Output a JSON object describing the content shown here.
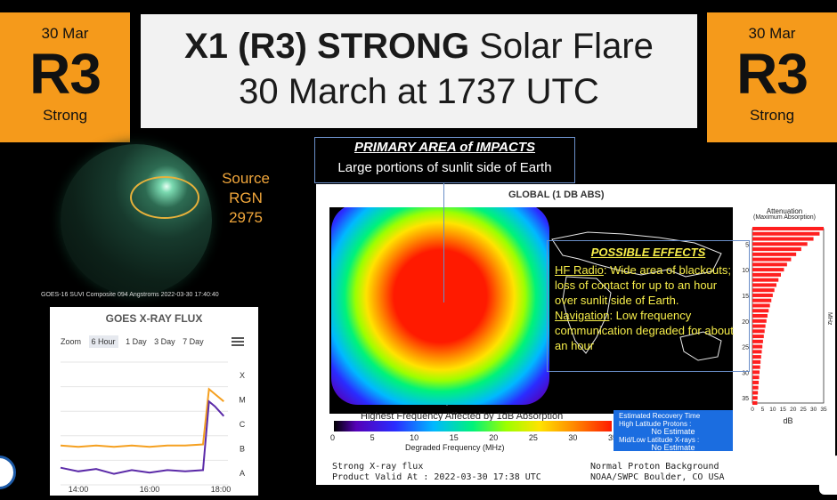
{
  "badges": {
    "left": {
      "date": "30 Mar",
      "level": "R3",
      "label": "Strong"
    },
    "right": {
      "date": "30 Mar",
      "level": "R3",
      "label": "Strong"
    }
  },
  "title": {
    "bold": "X1 (R3) STRONG",
    "rest": " Solar Flare",
    "line2": "30 March at 1737 UTC"
  },
  "source": {
    "line1": "Source",
    "line2": "RGN 2975"
  },
  "suvi_caption": "GOES-16 SUVI Composite 094 Angstroms 2022-03-30 17:40:40",
  "impact": {
    "title": "PRIMARY AREA of IMPACTS",
    "text": "Large portions of sunlit side of Earth"
  },
  "effects": {
    "title": "POSSIBLE EFFECTS",
    "hf_label": "HF Radio",
    "hf_text": ": Wide area of blackouts; loss of contact for up to an hour over sunlit side of Earth.",
    "nav_label": "Navigation",
    "nav_text": ": Low frequency communication degraded for about an hour"
  },
  "drap": {
    "title": "GLOBAL (1 DB ABS)",
    "legend_title": "Highest Frequency Affected by 1dB Absorption",
    "legend_ticks": [
      "0",
      "5",
      "10",
      "15",
      "20",
      "25",
      "30",
      "35"
    ],
    "legend_xlabel": "Degraded Frequency (MHz)",
    "attenuation_title": "Attenuation",
    "attenuation_subtitle": "(Maximum Absorption)",
    "attenuation_ylabel": "MHz",
    "attenuation_xlabel": "dB",
    "recovery": {
      "heading": "Estimated Recovery Time",
      "hlp_label": "High Latitude Protons :",
      "hlp_value": "No Estimate",
      "mll_label": "Mid/Low Latitude X-rays :",
      "mll_value": "No Estimate"
    },
    "footer_left": [
      "Strong X-ray flux",
      "Product Valid At : 2022-03-30 17:38 UTC"
    ],
    "footer_right": [
      "Normal Proton Background",
      "NOAA/SWPC Boulder, CO USA"
    ]
  },
  "xray": {
    "title": "GOES X-RAY FLUX",
    "zoom_label": "Zoom",
    "zoom_options": [
      "6 Hour",
      "1 Day",
      "3 Day",
      "7 Day"
    ],
    "class_labels": [
      "X",
      "M",
      "C",
      "B",
      "A"
    ],
    "time_labels": [
      "14:00",
      "16:00",
      "18:00"
    ]
  },
  "colors": {
    "badge": "#f59a1b",
    "source": "#f0a63b",
    "effects": "#f7ee4a",
    "frame": "#6a8ec8",
    "xray_long": "#f5a020",
    "xray_short": "#5b2aa8"
  },
  "chart_data": [
    {
      "type": "line",
      "title": "GOES X-RAY FLUX",
      "x": [
        "13:30",
        "14:00",
        "14:30",
        "15:00",
        "15:30",
        "16:00",
        "16:30",
        "17:00",
        "17:30",
        "17:40",
        "17:50",
        "18:05"
      ],
      "series": [
        {
          "values": [
            -6.4,
            -6.45,
            -6.4,
            -6.45,
            -6.4,
            -6.45,
            -6.4,
            -6.4,
            -6.35,
            -4.1,
            -4.3,
            -4.6
          ]
        },
        {
          "values": [
            -7.3,
            -7.45,
            -7.35,
            -7.55,
            -7.4,
            -7.5,
            -7.4,
            -7.45,
            -7.4,
            -4.6,
            -4.8,
            -5.2
          ]
        }
      ],
      "ylabel": "",
      "y_ticks": [
        "X",
        "M",
        "C",
        "B",
        "A"
      ],
      "ylim": [
        -8,
        -3
      ]
    },
    {
      "type": "bar",
      "title": "Attenuation",
      "subtitle": "(Maximum Absorption)",
      "orientation": "horizontal",
      "ylabel": "MHz",
      "xlabel": "dB",
      "y_ticks": [
        "5",
        "10",
        "15",
        "20",
        "25",
        "30",
        "35"
      ],
      "x_ticks": [
        "0",
        "5",
        "10",
        "15",
        "20",
        "25",
        "30",
        "35"
      ],
      "categories": [
        2,
        3,
        4,
        5,
        6,
        7,
        8,
        9,
        10,
        11,
        12,
        13,
        14,
        15,
        16,
        17,
        18,
        19,
        20,
        21,
        22,
        23,
        24,
        25,
        26,
        27,
        28,
        29,
        30,
        31,
        32,
        33,
        34,
        35,
        36
      ],
      "values": [
        35,
        33,
        30,
        27,
        24,
        21.5,
        19,
        17,
        15.5,
        14,
        12.8,
        11.8,
        10.8,
        10,
        9.3,
        8.6,
        8,
        7.4,
        6.9,
        6.4,
        6,
        5.6,
        5.2,
        4.9,
        4.6,
        4.3,
        4,
        3.8,
        3.5,
        3.3,
        3.1,
        2.9,
        2.7,
        2.5,
        2.4
      ],
      "xlim": [
        0,
        35
      ],
      "ylim": [
        2,
        36
      ]
    }
  ]
}
